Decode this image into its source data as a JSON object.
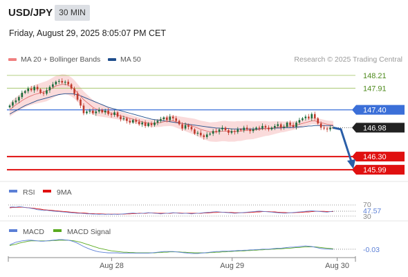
{
  "header": {
    "symbol": "USD/JPY",
    "timeframe": "30 MIN",
    "datetime": "Friday, August 29, 2025 8:05:07 PM CET",
    "copyright": "Research © 2025 Trading Central"
  },
  "legend": [
    {
      "label": "MA 20 + Bollinger Bands",
      "color": "#f08080"
    },
    {
      "label": "MA 50",
      "color": "#1f4e8c"
    }
  ],
  "colors": {
    "up": "#1a6b3a",
    "down": "#c0392b",
    "resistance": "#9bbf5a",
    "pivot": "#3b6fd8",
    "support": "#e01010",
    "last": "#222222",
    "band": "#f7c8c8",
    "ma20": "#e07070",
    "ma50": "#1f4e8c",
    "arrow": "#2a5ea8"
  },
  "chart_data": [
    {
      "type": "candlestick",
      "name": "price",
      "ylim": [
        145.78,
        148.42
      ],
      "levels": [
        {
          "value": 148.21,
          "label": "148.21",
          "kind": "resistance"
        },
        {
          "value": 147.91,
          "label": "147.91",
          "kind": "resistance"
        },
        {
          "value": 147.4,
          "label": "147.40",
          "kind": "pivot"
        },
        {
          "value": 146.98,
          "label": "146.98",
          "kind": "last"
        },
        {
          "value": 146.3,
          "label": "146.30",
          "kind": "support"
        },
        {
          "value": 145.99,
          "label": "145.99",
          "kind": "support"
        }
      ],
      "closes": [
        147.5,
        147.58,
        147.62,
        147.7,
        147.8,
        147.84,
        147.9,
        147.86,
        147.94,
        147.88,
        147.8,
        147.78,
        147.86,
        147.94,
        148.0,
        148.06,
        148.08,
        148.04,
        148.06,
        148.0,
        147.9,
        147.78,
        147.64,
        147.5,
        147.32,
        147.36,
        147.38,
        147.32,
        147.36,
        147.4,
        147.34,
        147.38,
        147.3,
        147.28,
        147.34,
        147.24,
        147.18,
        147.2,
        147.14,
        147.1,
        147.16,
        147.12,
        147.06,
        147.1,
        147.02,
        147.08,
        147.04,
        147.1,
        147.14,
        147.18,
        147.22,
        147.16,
        147.24,
        147.2,
        147.14,
        147.06,
        146.96,
        147.04,
        147.0,
        146.94,
        146.84,
        146.86,
        146.8,
        146.76,
        146.82,
        146.84,
        146.9,
        146.88,
        146.94,
        146.98,
        146.92,
        146.86,
        146.9,
        146.88,
        146.94,
        146.92,
        146.98,
        146.94,
        146.9,
        146.94,
        146.98,
        146.96,
        147.02,
        146.98,
        146.94,
        146.98,
        147.02,
        147.06,
        146.98,
        147.0,
        147.1,
        147.04,
        147.0,
        147.1,
        147.16,
        147.2,
        147.24,
        147.2,
        147.3,
        147.2,
        147.08,
        146.98,
        146.96,
        146.94,
        146.98,
        146.98
      ],
      "ma20": [
        147.4,
        147.46,
        147.52,
        147.56,
        147.62,
        147.66,
        147.7,
        147.73,
        147.76,
        147.78,
        147.8,
        147.82,
        147.84,
        147.88,
        147.92,
        147.96,
        147.98,
        148.0,
        148.0,
        147.98,
        147.94,
        147.88,
        147.8,
        147.72,
        147.64,
        147.58,
        147.52,
        147.46,
        147.42,
        147.4,
        147.38,
        147.36,
        147.34,
        147.32,
        147.3,
        147.28,
        147.26,
        147.24,
        147.22,
        147.2,
        147.18,
        147.16,
        147.14,
        147.12,
        147.1,
        147.09,
        147.08,
        147.08,
        147.09,
        147.1,
        147.12,
        147.13,
        147.14,
        147.14,
        147.12,
        147.1,
        147.08,
        147.06,
        147.04,
        147.02,
        147.0,
        146.97,
        146.94,
        146.92,
        146.9,
        146.88,
        146.88,
        146.88,
        146.89,
        146.9,
        146.9,
        146.89,
        146.89,
        146.89,
        146.9,
        146.9,
        146.91,
        146.92,
        146.92,
        146.92,
        146.93,
        146.94,
        146.95,
        146.96,
        146.96,
        146.97,
        146.98,
        146.99,
        147.0,
        147.0,
        147.01,
        147.02,
        147.03,
        147.04,
        147.06,
        147.08,
        147.1,
        147.12,
        147.14,
        147.14,
        147.12,
        147.1,
        147.08,
        147.06,
        147.05,
        147.04
      ],
      "ma50": [
        147.3,
        147.34,
        147.38,
        147.42,
        147.46,
        147.5,
        147.53,
        147.56,
        147.59,
        147.62,
        147.64,
        147.66,
        147.68,
        147.7,
        147.72,
        147.74,
        147.76,
        147.77,
        147.78,
        147.78,
        147.78,
        147.77,
        147.75,
        147.73,
        147.7,
        147.67,
        147.64,
        147.61,
        147.58,
        147.55,
        147.52,
        147.49,
        147.46,
        147.44,
        147.42,
        147.4,
        147.38,
        147.36,
        147.34,
        147.32,
        147.3,
        147.28,
        147.26,
        147.24,
        147.22,
        147.2,
        147.18,
        147.17,
        147.16,
        147.15,
        147.14,
        147.13,
        147.12,
        147.11,
        147.1,
        147.09,
        147.08,
        147.07,
        147.06,
        147.05,
        147.04,
        147.03,
        147.02,
        147.01,
        147.0,
        146.99,
        146.98,
        146.97,
        146.97,
        146.96,
        146.96,
        146.96,
        146.95,
        146.95,
        146.95,
        146.95,
        146.95,
        146.95,
        146.95,
        146.95,
        146.95,
        146.95,
        146.96,
        146.96,
        146.96,
        146.96,
        146.97,
        146.97,
        146.97,
        146.98,
        146.98,
        146.98,
        146.99,
        146.99,
        147.0,
        147.0,
        147.01,
        147.02,
        147.02,
        147.03,
        147.03,
        147.03,
        147.03,
        147.03,
        147.03,
        147.03
      ]
    },
    {
      "type": "line",
      "name": "rsi",
      "legend": [
        {
          "label": "RSI",
          "color": "#5b7fd6"
        },
        {
          "label": "9MA",
          "color": "#e01010"
        }
      ],
      "ylim": [
        30,
        70
      ],
      "ticks": [
        "70",
        "30"
      ],
      "last_value": "47.57",
      "values": [
        62,
        63,
        62,
        64,
        63,
        61,
        60,
        58,
        56,
        53,
        52,
        50,
        51,
        49,
        48,
        47,
        46,
        45,
        44,
        43,
        42,
        41,
        40,
        40,
        39,
        38,
        38,
        37,
        37,
        36,
        37,
        36,
        37,
        36,
        37,
        36,
        37,
        38,
        39,
        40,
        41,
        40,
        39,
        40,
        41,
        42,
        41,
        40,
        39,
        38,
        39,
        40,
        41,
        42,
        41,
        40,
        39,
        40,
        39,
        38,
        39,
        40,
        41,
        42,
        43,
        44,
        45,
        46,
        45,
        44,
        43,
        42,
        41,
        40,
        41,
        42,
        43,
        44,
        45,
        46,
        47,
        48,
        47,
        46,
        45,
        44,
        43,
        42,
        41,
        40,
        41,
        42,
        43,
        44,
        45,
        46,
        47,
        48,
        49,
        48,
        47,
        46,
        45,
        44,
        46,
        47.57
      ],
      "ma": [
        60,
        61,
        61,
        62,
        62,
        61,
        60,
        59,
        58,
        56,
        55,
        53,
        52,
        51,
        50,
        49,
        48,
        47,
        46,
        45,
        44,
        43,
        42,
        41,
        41,
        40,
        39,
        39,
        38,
        38,
        38,
        37,
        37,
        37,
        37,
        37,
        37,
        37,
        38,
        38,
        39,
        39,
        40,
        40,
        40,
        41,
        41,
        41,
        40,
        40,
        40,
        40,
        40,
        41,
        41,
        41,
        40,
        40,
        40,
        40,
        40,
        40,
        40,
        41,
        41,
        42,
        43,
        43,
        44,
        44,
        44,
        43,
        43,
        42,
        42,
        42,
        42,
        43,
        43,
        44,
        45,
        45,
        46,
        46,
        46,
        45,
        45,
        44,
        43,
        43,
        42,
        42,
        42,
        43,
        43,
        44,
        45,
        45,
        46,
        47,
        47,
        47,
        47,
        46,
        46,
        46
      ]
    },
    {
      "type": "line",
      "name": "macd",
      "legend": [
        {
          "label": "MACD",
          "color": "#5b7fd6"
        },
        {
          "label": "MACD Signal",
          "color": "#5aaa20"
        }
      ],
      "ylim": [
        -0.2,
        0.3
      ],
      "last_value": "-0.03",
      "values": [
        0.1,
        0.14,
        0.18,
        0.2,
        0.22,
        0.23,
        0.24,
        0.24,
        0.23,
        0.22,
        0.21,
        0.21,
        0.22,
        0.23,
        0.24,
        0.25,
        0.26,
        0.26,
        0.25,
        0.24,
        0.22,
        0.19,
        0.15,
        0.1,
        0.05,
        0.01,
        -0.03,
        -0.06,
        -0.09,
        -0.11,
        -0.12,
        -0.13,
        -0.14,
        -0.14,
        -0.14,
        -0.14,
        -0.15,
        -0.15,
        -0.15,
        -0.15,
        -0.15,
        -0.15,
        -0.15,
        -0.15,
        -0.15,
        -0.15,
        -0.14,
        -0.13,
        -0.12,
        -0.11,
        -0.1,
        -0.1,
        -0.1,
        -0.1,
        -0.11,
        -0.12,
        -0.13,
        -0.14,
        -0.15,
        -0.16,
        -0.16,
        -0.16,
        -0.15,
        -0.14,
        -0.13,
        -0.12,
        -0.11,
        -0.1,
        -0.1,
        -0.09,
        -0.09,
        -0.09,
        -0.08,
        -0.08,
        -0.07,
        -0.07,
        -0.06,
        -0.06,
        -0.05,
        -0.05,
        -0.04,
        -0.04,
        -0.03,
        -0.03,
        -0.03,
        -0.02,
        -0.01,
        0.0,
        0.0,
        0.01,
        0.02,
        0.03,
        0.03,
        0.04,
        0.05,
        0.06,
        0.07,
        0.06,
        0.05,
        0.03,
        0.01,
        -0.01,
        -0.02,
        -0.03,
        -0.03,
        -0.03
      ],
      "signal": [
        0.08,
        0.1,
        0.12,
        0.15,
        0.17,
        0.19,
        0.21,
        0.22,
        0.22,
        0.22,
        0.22,
        0.22,
        0.22,
        0.22,
        0.23,
        0.23,
        0.24,
        0.24,
        0.24,
        0.24,
        0.23,
        0.22,
        0.2,
        0.18,
        0.15,
        0.12,
        0.09,
        0.06,
        0.03,
        0.0,
        -0.02,
        -0.04,
        -0.06,
        -0.08,
        -0.09,
        -0.1,
        -0.11,
        -0.12,
        -0.12,
        -0.13,
        -0.13,
        -0.14,
        -0.14,
        -0.14,
        -0.14,
        -0.14,
        -0.14,
        -0.14,
        -0.13,
        -0.13,
        -0.12,
        -0.12,
        -0.11,
        -0.11,
        -0.11,
        -0.11,
        -0.12,
        -0.12,
        -0.13,
        -0.13,
        -0.14,
        -0.14,
        -0.14,
        -0.14,
        -0.14,
        -0.13,
        -0.13,
        -0.12,
        -0.12,
        -0.11,
        -0.11,
        -0.1,
        -0.1,
        -0.09,
        -0.09,
        -0.08,
        -0.08,
        -0.07,
        -0.07,
        -0.06,
        -0.06,
        -0.05,
        -0.05,
        -0.04,
        -0.04,
        -0.03,
        -0.03,
        -0.02,
        -0.02,
        -0.01,
        0.0,
        0.0,
        0.01,
        0.02,
        0.02,
        0.03,
        0.04,
        0.04,
        0.04,
        0.04,
        0.03,
        0.02,
        0.01,
        0.0,
        -0.01,
        -0.02
      ]
    }
  ],
  "xaxis": {
    "ticks": [
      {
        "label": "Aug 28",
        "pos": 0.3
      },
      {
        "label": "Aug 29",
        "pos": 0.65
      },
      {
        "label": "Aug 30",
        "pos": 0.955
      }
    ]
  }
}
